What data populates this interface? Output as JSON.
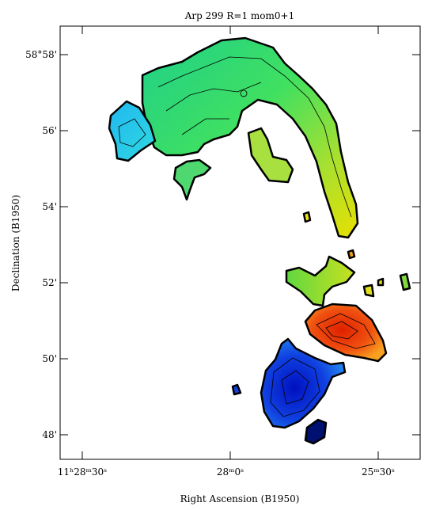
{
  "title": "Arp 299 R=1 mom0+1",
  "x_axis": {
    "label": "Right Ascension (B1950)",
    "ticks": [
      "11ʰ28ᵐ30ˢ",
      "28ᵐ0ˢ",
      "25ᵐ30ˢ"
    ]
  },
  "y_axis": {
    "label": "Declination (B1950)",
    "ticks": [
      "58°58'",
      "56'",
      "54'",
      "52'",
      "50'",
      "48'"
    ]
  }
}
